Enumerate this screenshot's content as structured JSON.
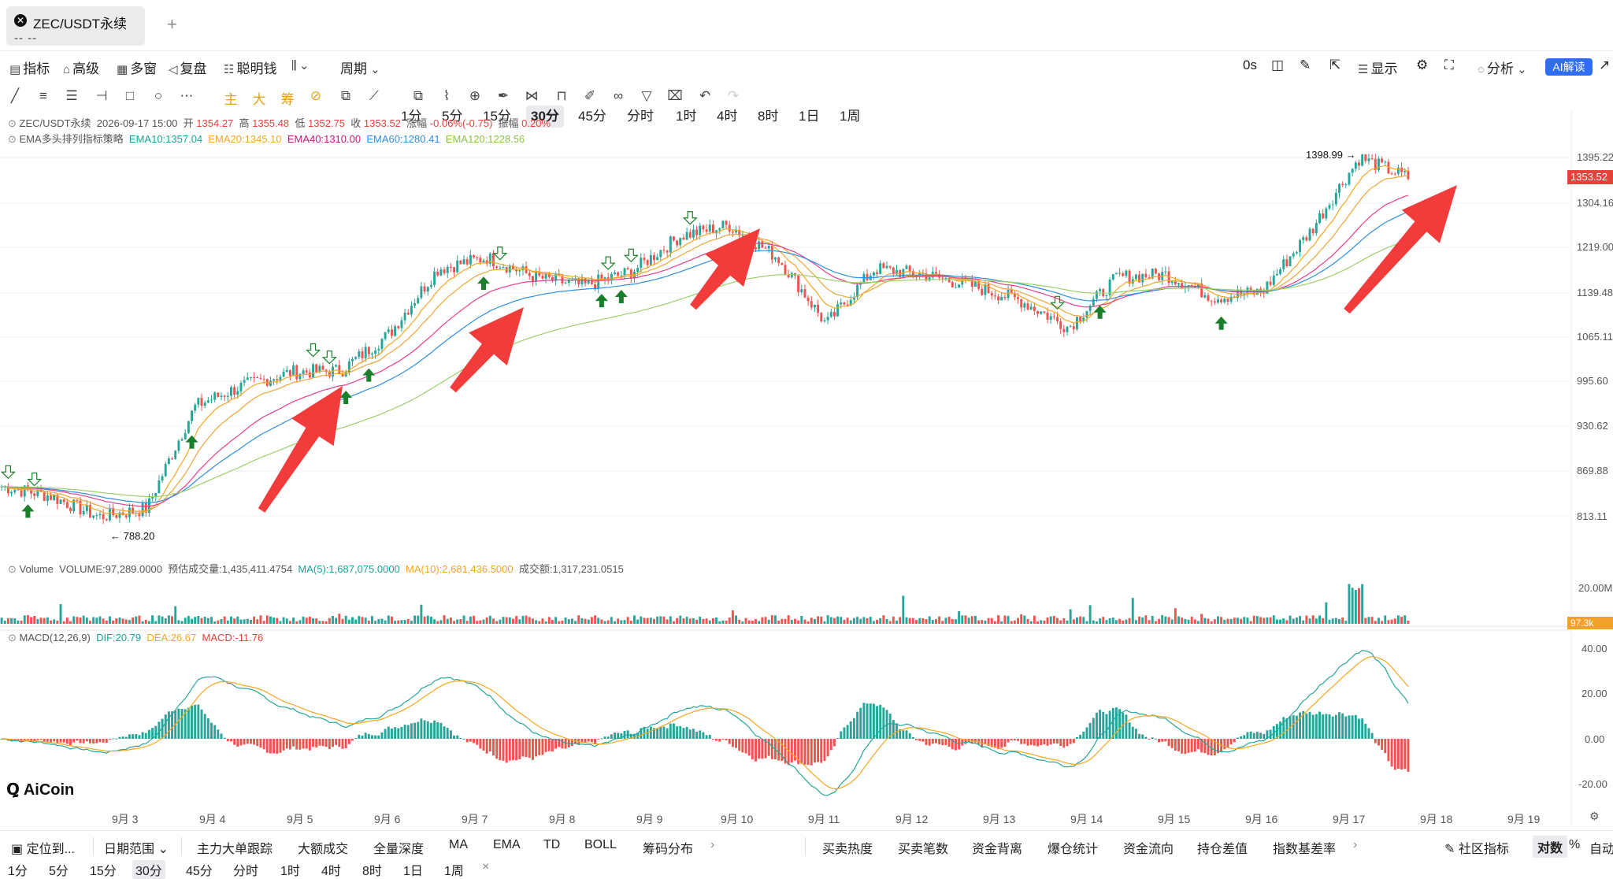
{
  "tab": {
    "title": "ZEC/USDT永续",
    "subtitle": "-- --",
    "add": "+"
  },
  "toolbar1": {
    "indicator": "指标",
    "advanced": "高级",
    "multi_window": "多窗",
    "replay": "复盘",
    "smart_money": "聪明钱",
    "period": "周期",
    "periods": [
      "1分",
      "5分",
      "15分",
      "30分",
      "45分",
      "分时",
      "1时",
      "4时",
      "8时",
      "1日",
      "1周"
    ],
    "selected_period": "30分",
    "countdown": "0s",
    "display": "显示",
    "analysis": "分析",
    "ai": "AI解读"
  },
  "chart_info": {
    "symbol_line": "ZEC/USDT永续",
    "datetime": "2026-09-17 15:00",
    "open_label": "开",
    "open": "1354.27",
    "high_label": "高",
    "high": "1355.48",
    "low_label": "低",
    "low": "1352.75",
    "close_label": "收",
    "close": "1353.52",
    "change_label": "涨幅",
    "change": "-0.06%(-0.75)",
    "amp_label": "振幅",
    "amp": "0.20%",
    "ema_name": "EMA多头排列指标策略",
    "ema10": "EMA10:1357.04",
    "ema20": "EMA20:1345.10",
    "ema40": "EMA40:1310.00",
    "ema60": "EMA60:1280.41",
    "ema120": "EMA120:1228.56",
    "high_mark": "1398.99 →",
    "low_mark": "← 788.20"
  },
  "price_axis": [
    "1395.22",
    "1304.16",
    "1219.00",
    "1139.48",
    "1065.11",
    "995.60",
    "930.62",
    "869.88",
    "813.11"
  ],
  "last_price": "1353.52",
  "volume_info": {
    "label": "Volume",
    "vol": "VOLUME:97,289.0000",
    "est": "预估成交量:1,435,411.4754",
    "ma5": "MA(5):1,687,075.0000",
    "ma10": "MA(10):2,681,436.5000",
    "amount": "成交额:1,317,231.0515"
  },
  "volume_axis": {
    "top": "20.00M",
    "tag": "97.3k"
  },
  "macd_info": {
    "label": "MACD(12,26,9)",
    "dif": "DIF:20.79",
    "dea": "DEA:26.67",
    "macd": "MACD:-11.76"
  },
  "macd_axis": [
    "40.00",
    "20.00",
    "0.00",
    "-20.00"
  ],
  "dates": [
    "9月 3",
    "9月 4",
    "9月 5",
    "9月 6",
    "9月 7",
    "9月 8",
    "9月 9",
    "9月 10",
    "9月 11",
    "9月 12",
    "9月 13",
    "9月 14",
    "9月 15",
    "9月 16",
    "9月 17",
    "9月 18",
    "9月 19"
  ],
  "logo": "AiCoin",
  "bottom1": {
    "locate": "定位到...",
    "date_range": "日期范围",
    "items": [
      "主力大单跟踪",
      "大额成交",
      "全量深度",
      "MA",
      "EMA",
      "TD",
      "BOLL",
      "筹码分布"
    ],
    "right_items": [
      "买卖热度",
      "买卖笔数",
      "资金背离",
      "爆仓统计",
      "资金流向",
      "持仓差值",
      "指数基差率"
    ],
    "community": "社区指标",
    "log": "对数",
    "pct": "%",
    "auto": "自动"
  },
  "bottom2": {
    "periods": [
      "1分",
      "5分",
      "15分",
      "30分",
      "45分",
      "分时",
      "1时",
      "4时",
      "8时",
      "1日",
      "1周"
    ],
    "selected": "30分",
    "close": "×"
  },
  "colors": {
    "up": "#26a69a",
    "down": "#ef5350",
    "ema10": "#f5a623",
    "ema20": "#e9a63a",
    "ema40": "#e83e8c",
    "ema60": "#2f8fe0",
    "ema120": "#9ccf6a",
    "arrow": "#f23b3b",
    "signal_up": "#1a7f2a"
  },
  "chart_data": {
    "type": "candlestick",
    "price_high_mark": 1398.99,
    "price_low_mark": 788.2,
    "close_path": [
      {
        "date": "9月 3",
        "close": 850
      },
      {
        "date": "9月 3",
        "close": 838
      },
      {
        "date": "9月 3",
        "close": 812
      },
      {
        "date": "9月 4",
        "close": 822
      },
      {
        "date": "9月 4",
        "close": 960
      },
      {
        "date": "9月 5",
        "close": 990
      },
      {
        "date": "9月 5",
        "close": 1010
      },
      {
        "date": "9月 6",
        "close": 1012
      },
      {
        "date": "9月 6",
        "close": 1070
      },
      {
        "date": "9月 7",
        "close": 1180
      },
      {
        "date": "9月 7",
        "close": 1200
      },
      {
        "date": "9月 8",
        "close": 1165
      },
      {
        "date": "9月 9",
        "close": 1150
      },
      {
        "date": "9月 9",
        "close": 1175
      },
      {
        "date": "9月 10",
        "close": 1240
      },
      {
        "date": "9月 10",
        "close": 1260
      },
      {
        "date": "9月 11",
        "close": 1200
      },
      {
        "date": "9月 11",
        "close": 1085
      },
      {
        "date": "9月 12",
        "close": 1180
      },
      {
        "date": "9月 12",
        "close": 1170
      },
      {
        "date": "9月 13",
        "close": 1150
      },
      {
        "date": "9月 14",
        "close": 1125
      },
      {
        "date": "9月 14",
        "close": 1080
      },
      {
        "date": "9月 15",
        "close": 1165
      },
      {
        "date": "9月 15",
        "close": 1170
      },
      {
        "date": "9月 16",
        "close": 1130
      },
      {
        "date": "9月 16",
        "close": 1140
      },
      {
        "date": "9月 17",
        "close": 1250
      },
      {
        "date": "9月 17",
        "close": 1395
      },
      {
        "date": "9月 17",
        "close": 1353.52
      }
    ]
  }
}
